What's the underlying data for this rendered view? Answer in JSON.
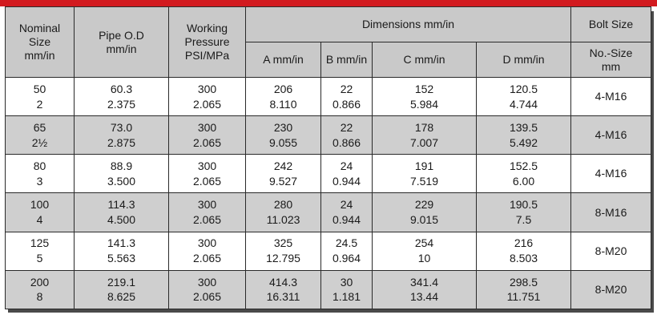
{
  "header": {
    "nominal": [
      "Nominal",
      "Size",
      "mm/in"
    ],
    "pipe_od": [
      "Pipe O.D",
      "mm/in"
    ],
    "working": [
      "Working",
      "Pressure",
      "PSI/MPa"
    ],
    "dimensions": "Dimensions mm/in",
    "bolt": "Bolt Size",
    "sub": {
      "a": "A  mm/in",
      "b": "B mm/in",
      "c": "C  mm/in",
      "d": "D  mm/in",
      "bolt_sub": [
        "No.-Size",
        "mm"
      ]
    }
  },
  "rows": [
    {
      "nom": [
        "50",
        "2"
      ],
      "od": [
        "60.3",
        "2.375"
      ],
      "wp": [
        "300",
        "2.065"
      ],
      "a": [
        "206",
        "8.110"
      ],
      "b": [
        "22",
        "0.866"
      ],
      "c": [
        "152",
        "5.984"
      ],
      "d": [
        "120.5",
        "4.744"
      ],
      "bolt": "4-M16"
    },
    {
      "nom": [
        "65",
        "2½"
      ],
      "od": [
        "73.0",
        "2.875"
      ],
      "wp": [
        "300",
        "2.065"
      ],
      "a": [
        "230",
        "9.055"
      ],
      "b": [
        "22",
        "0.866"
      ],
      "c": [
        "178",
        "7.007"
      ],
      "d": [
        "139.5",
        "5.492"
      ],
      "bolt": "4-M16"
    },
    {
      "nom": [
        "80",
        "3"
      ],
      "od": [
        "88.9",
        "3.500"
      ],
      "wp": [
        "300",
        "2.065"
      ],
      "a": [
        "242",
        "9.527"
      ],
      "b": [
        "24",
        "0.944"
      ],
      "c": [
        "191",
        "7.519"
      ],
      "d": [
        "152.5",
        "6.00"
      ],
      "bolt": "4-M16"
    },
    {
      "nom": [
        "100",
        "4"
      ],
      "od": [
        "114.3",
        "4.500"
      ],
      "wp": [
        "300",
        "2.065"
      ],
      "a": [
        "280",
        "11.023"
      ],
      "b": [
        "24",
        "0.944"
      ],
      "c": [
        "229",
        "9.015"
      ],
      "d": [
        "190.5",
        "7.5"
      ],
      "bolt": "8-M16"
    },
    {
      "nom": [
        "125",
        "5"
      ],
      "od": [
        "141.3",
        "5.563"
      ],
      "wp": [
        "300",
        "2.065"
      ],
      "a": [
        "325",
        "12.795"
      ],
      "b": [
        "24.5",
        "0.964"
      ],
      "c": [
        "254",
        "10"
      ],
      "d": [
        "216",
        "8.503"
      ],
      "bolt": "8-M20"
    },
    {
      "nom": [
        "200",
        "8"
      ],
      "od": [
        "219.1",
        "8.625"
      ],
      "wp": [
        "300",
        "2.065"
      ],
      "a": [
        "414.3",
        "16.311"
      ],
      "b": [
        "30",
        "1.181"
      ],
      "c": [
        "341.4",
        "13.44"
      ],
      "d": [
        "298.5",
        "11.751"
      ],
      "bolt": "8-M20"
    }
  ],
  "colors": {
    "accent_bar": "#d21a1f",
    "shaded_row": "#cfcfcf",
    "header_bg": "#c9c9c9"
  }
}
